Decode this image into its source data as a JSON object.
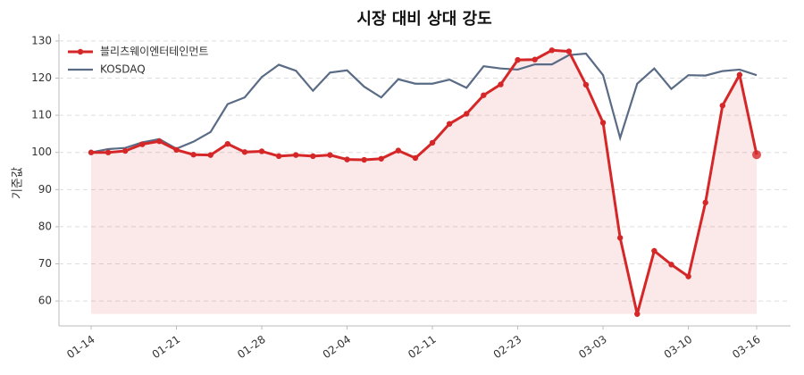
{
  "chart_data": {
    "type": "line",
    "title": "시장 대비 상대 강도",
    "y_label": "기준값",
    "categories": [
      "01-14",
      null,
      null,
      null,
      null,
      "01-21",
      null,
      null,
      null,
      null,
      "01-28",
      null,
      null,
      null,
      null,
      "02-04",
      null,
      null,
      null,
      null,
      "02-11",
      null,
      null,
      null,
      null,
      "02-23",
      null,
      null,
      null,
      null,
      "03-03",
      null,
      null,
      null,
      null,
      "03-10",
      null,
      null,
      null,
      "03-16"
    ],
    "series": [
      {
        "name": "블리츠웨이엔터테인먼트",
        "color": "#d62728",
        "values": [
          100,
          100.0,
          100.4,
          102.2,
          103.0,
          100.7,
          99.4,
          99.3,
          102.3,
          100.1,
          100.3,
          99.0,
          99.3,
          99.0,
          99.3,
          98.1,
          98.0,
          98.3,
          100.5,
          98.5,
          102.6,
          107.7,
          110.4,
          115.4,
          118.3,
          124.9,
          125.0,
          127.5,
          127.2,
          118.2,
          108.0,
          77.0,
          56.5,
          73.5,
          69.8,
          66.6,
          86.5,
          112.6,
          120.9,
          99.4
        ]
      },
      {
        "name": "KOSDAQ",
        "color": "#5a6b85",
        "values": [
          100,
          100.9,
          101.2,
          102.7,
          103.6,
          101.0,
          102.9,
          105.5,
          113.0,
          114.8,
          120.3,
          123.6,
          122.0,
          116.6,
          121.5,
          122.1,
          117.7,
          114.8,
          119.7,
          118.5,
          118.5,
          119.6,
          117.4,
          123.2,
          122.6,
          122.3,
          123.7,
          123.7,
          126.2,
          126.6,
          120.8,
          103.9,
          118.5,
          122.6,
          117.1,
          120.8,
          120.7,
          121.9,
          122.3,
          120.8
        ]
      }
    ],
    "ylim": [
      53.3,
      131.9
    ],
    "yticks": [
      60,
      70,
      80,
      90,
      100,
      110,
      120,
      130
    ],
    "grid": true,
    "legend": "upper left"
  }
}
